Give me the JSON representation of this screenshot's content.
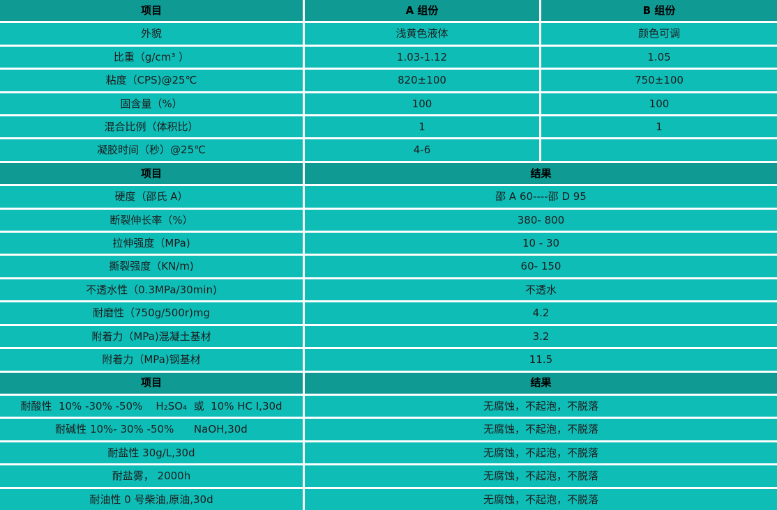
{
  "theme": {
    "header_bg": "#0F9A94",
    "row_bg": "#0FBDB7",
    "grid_line": "#FFFFFF",
    "text_color": "#1C1C1C"
  },
  "table": {
    "sections": [
      {
        "header": [
          "项目",
          "A 组份",
          "B 组份"
        ],
        "merged": false,
        "rows": [
          [
            "外貌",
            "浅黄色液体",
            "颜色可调"
          ],
          [
            "比重（g/cm³ ）",
            "1.03-1.12",
            "1.05"
          ],
          [
            "粘度（CPS)@25℃",
            "820±100",
            "750±100"
          ],
          [
            "固含量（%）",
            "100",
            "100"
          ],
          [
            "混合比例（体积比）",
            "1",
            "1"
          ],
          [
            "凝胶时间（秒）@25℃",
            "4-6",
            ""
          ]
        ]
      },
      {
        "header": [
          "项目",
          "结果"
        ],
        "merged": true,
        "rows": [
          [
            "硬度（邵氏 A）",
            "邵 A 60----邵 D 95"
          ],
          [
            "断裂伸长率（%）",
            "380- 800"
          ],
          [
            "拉伸强度（MPa)",
            "10 - 30"
          ],
          [
            "撕裂强度（KN/m)",
            "60- 150"
          ],
          [
            "不透水性（0.3MPa/30min)",
            "不透水"
          ],
          [
            "耐磨性（750g/500r)mg",
            "4.2"
          ],
          [
            "附着力（MPa)混凝土基材",
            "3.2"
          ],
          [
            "附着力（MPa)钢基材",
            "11.5"
          ]
        ]
      },
      {
        "header": [
          "项目",
          "结果"
        ],
        "merged": true,
        "rows": [
          [
            "耐酸性  10% -30% -50%    H₂SO₄  或  10% HC I,30d",
            "无腐蚀，不起泡，不脱落"
          ],
          [
            "耐碱性 10%- 30% -50%      NaOH,30d",
            "无腐蚀，不起泡，不脱落"
          ],
          [
            "耐盐性 30g/L,30d",
            "无腐蚀，不起泡，不脱落"
          ],
          [
            "耐盐雾， 2000h",
            "无腐蚀，不起泡，不脱落"
          ],
          [
            "耐油性 0 号柴油,原油,30d",
            "无腐蚀，不起泡，不脱落"
          ]
        ]
      }
    ]
  }
}
